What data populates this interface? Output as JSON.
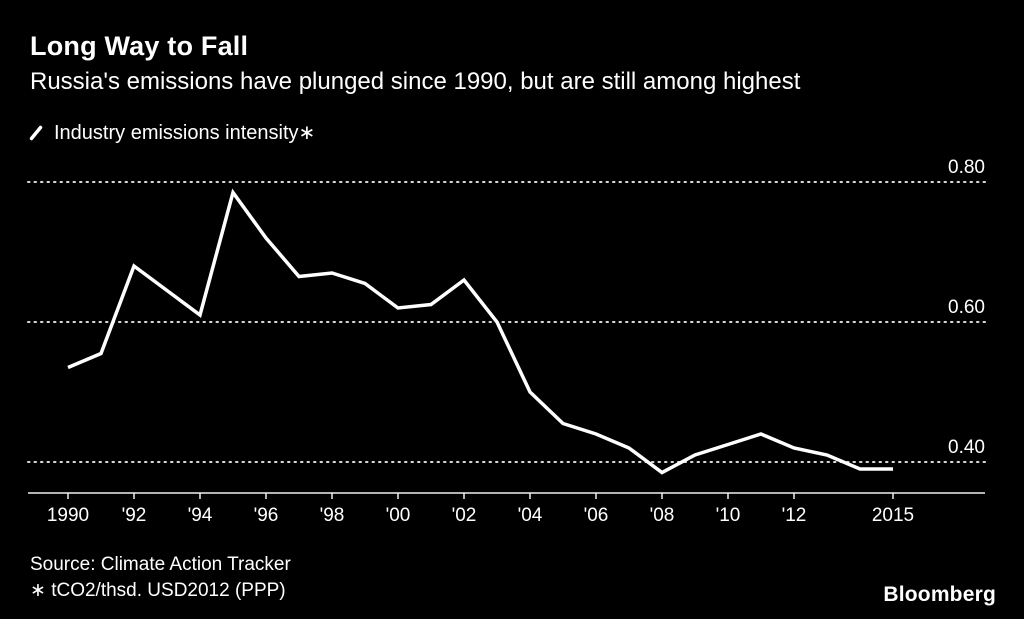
{
  "header": {
    "title": "Long Way to Fall",
    "subtitle": "Russia's emissions have plunged since 1990, but are still among highest"
  },
  "legend": {
    "label": "Industry emissions intensity∗"
  },
  "footer": {
    "source": "Source: Climate Action Tracker",
    "footnote": "∗ tCO2/thsd. USD2012 (PPP)",
    "brand": "Bloomberg"
  },
  "colors": {
    "background": "#000000",
    "text": "#ffffff",
    "line": "#ffffff",
    "grid": "#d9d9d9",
    "axis": "#f0f0f0"
  },
  "chart_data": {
    "type": "line",
    "title": "Long Way to Fall",
    "subtitle": "Russia's emissions have plunged since 1990, but are still among highest",
    "ylabel": "tCO2/thsd. USD2012 (PPP)",
    "xlabel": "",
    "grid": "horizontal-dotted",
    "legend_position": "top-left",
    "xlim": [
      1990,
      2015
    ],
    "ylim": [
      0.35,
      0.84
    ],
    "y_ticks": [
      0.4,
      0.6,
      0.8
    ],
    "x_ticks": [
      {
        "year": 1990,
        "label": "1990"
      },
      {
        "year": 1992,
        "label": "'92"
      },
      {
        "year": 1994,
        "label": "'94"
      },
      {
        "year": 1996,
        "label": "'96"
      },
      {
        "year": 1998,
        "label": "'98"
      },
      {
        "year": 2000,
        "label": "'00"
      },
      {
        "year": 2002,
        "label": "'02"
      },
      {
        "year": 2004,
        "label": "'04"
      },
      {
        "year": 2006,
        "label": "'06"
      },
      {
        "year": 2008,
        "label": "'08"
      },
      {
        "year": 2010,
        "label": "'10"
      },
      {
        "year": 2012,
        "label": "'12"
      },
      {
        "year": 2015,
        "label": "2015"
      }
    ],
    "series": [
      {
        "name": "Industry emissions intensity",
        "x": [
          1990,
          1991,
          1992,
          1993,
          1994,
          1995,
          1996,
          1997,
          1998,
          1999,
          2000,
          2001,
          2002,
          2003,
          2004,
          2005,
          2006,
          2007,
          2008,
          2009,
          2010,
          2011,
          2012,
          2013,
          2014,
          2015
        ],
        "values": [
          0.535,
          0.555,
          0.68,
          0.645,
          0.61,
          0.785,
          0.72,
          0.665,
          0.67,
          0.655,
          0.62,
          0.625,
          0.66,
          0.6,
          0.5,
          0.455,
          0.44,
          0.42,
          0.385,
          0.41,
          0.425,
          0.44,
          0.42,
          0.41,
          0.39,
          0.39
        ]
      }
    ]
  }
}
